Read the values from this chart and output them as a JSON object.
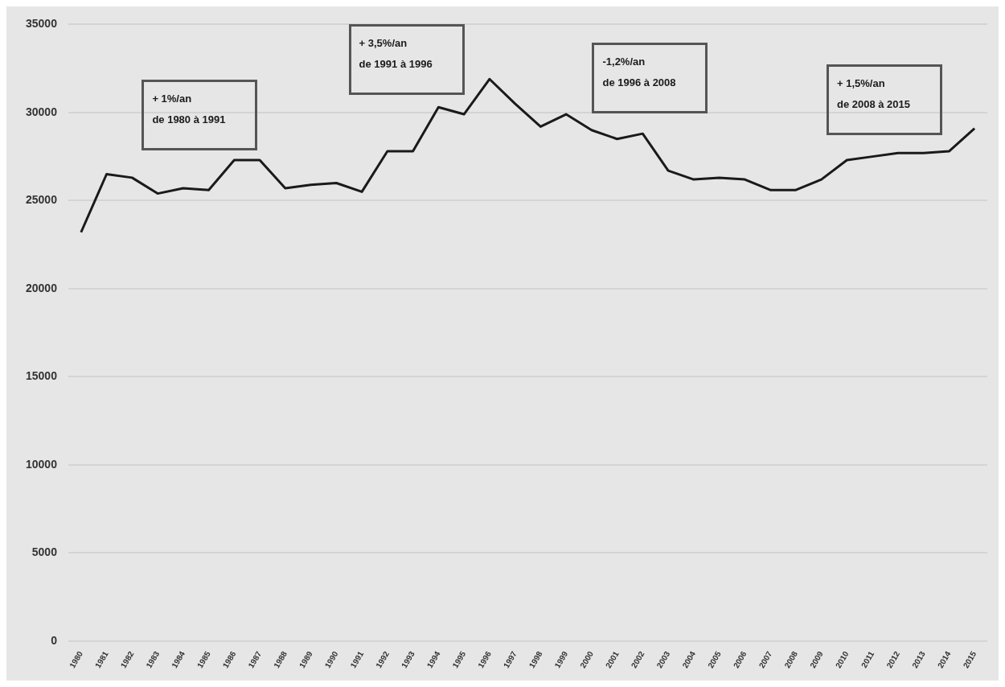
{
  "chart_data": {
    "type": "line",
    "categories": [
      "1980",
      "1981",
      "1982",
      "1983",
      "1984",
      "1985",
      "1986",
      "1987",
      "1988",
      "1989",
      "1990",
      "1991",
      "1992",
      "1993",
      "1994",
      "1995",
      "1996",
      "1997",
      "1998",
      "1999",
      "2000",
      "2001",
      "2002",
      "2003",
      "2004",
      "2005",
      "2006",
      "2007",
      "2008",
      "2009",
      "2010",
      "2011",
      "2012",
      "2013",
      "2014",
      "2015"
    ],
    "series": [
      {
        "color": "#1a1a1a",
        "values": [
          23200,
          26500,
          26300,
          25400,
          25700,
          25600,
          27300,
          27300,
          25700,
          25900,
          26000,
          25500,
          27800,
          27800,
          30300,
          29900,
          31900,
          30500,
          29200,
          29900,
          29000,
          28500,
          28800,
          26700,
          26200,
          26300,
          26200,
          25600,
          25600,
          26200,
          27300,
          27500,
          27700,
          27700,
          27800,
          29100
        ]
      }
    ],
    "ylim": [
      0,
      35000
    ],
    "yticks": [
      0,
      5000,
      10000,
      15000,
      20000,
      25000,
      30000,
      35000
    ],
    "grid": "y",
    "legend": false,
    "marker": "none",
    "line_style": "solid",
    "annotations": [
      "+ 1%/an\nde 1980 à 1991",
      "+ 3,5%/an\nde 1991 à 1996",
      "-1,2%/an\nde 1996 à 2008",
      "+ 1,5%/an\nde 2008 à 2015"
    ]
  }
}
